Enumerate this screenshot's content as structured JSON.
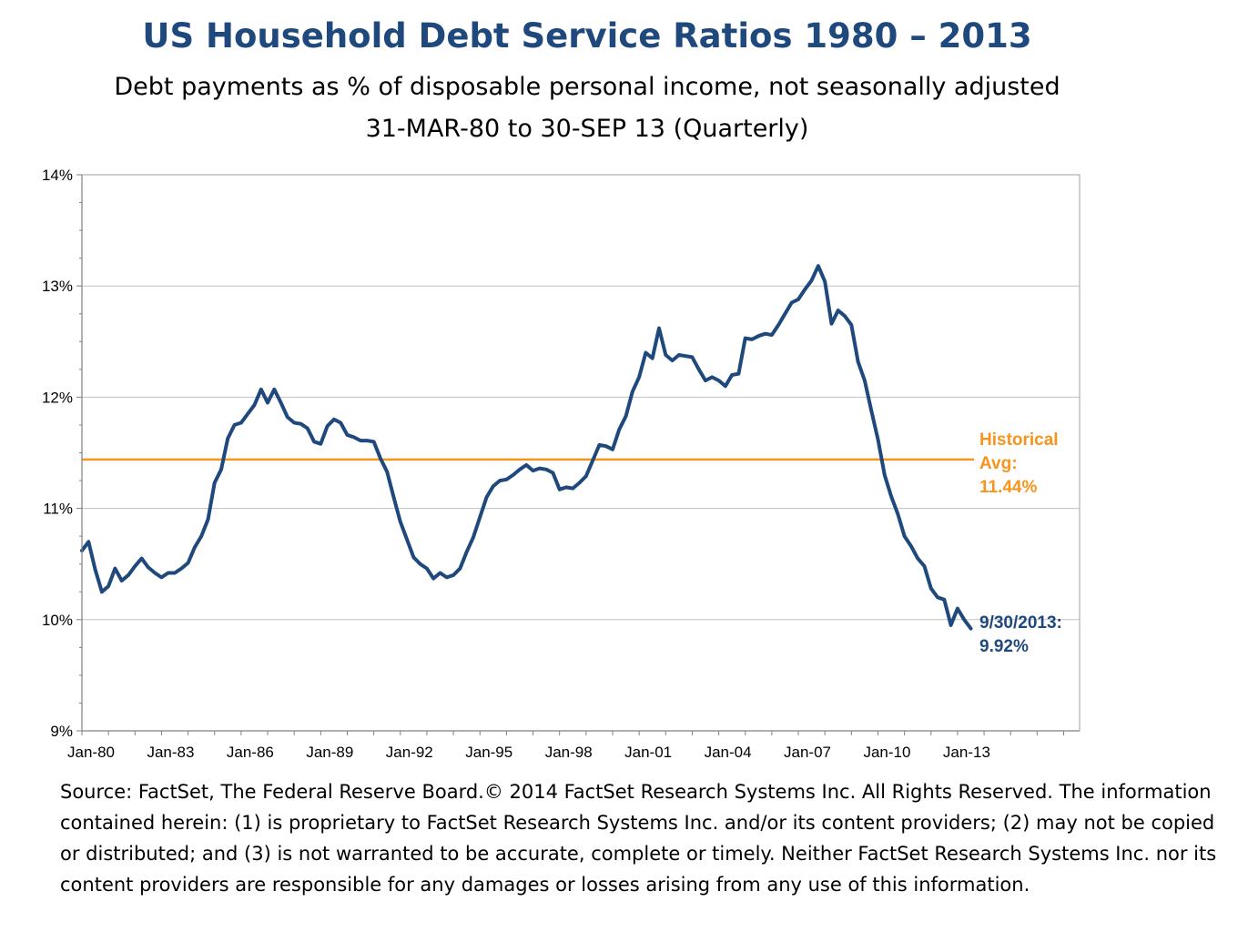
{
  "title": "US Household Debt Service Ratios 1980 – 2013",
  "subtitle1": "Debt payments as % of disposable personal income, not seasonally adjusted",
  "subtitle2": "31-MAR-80 to 30-SEP 13 (Quarterly)",
  "source": "Source: FactSet, The Federal Reserve Board.© 2014 FactSet Research Systems Inc. All Rights Reserved. The information contained herein: (1) is proprietary to FactSet Research Systems Inc. and/or its content providers; (2) may not be copied or distributed; and (3) is not warranted to be accurate, complete or timely. Neither FactSet Research Systems Inc. nor its content providers are responsible for any damages or losses arising from any use of this information.",
  "colors": {
    "title": "#1f497d",
    "series": "#1f497d",
    "average": "#f7941d",
    "grid": "#c0c0c0",
    "last_label": "#1f497d"
  },
  "chart_data": {
    "type": "line",
    "title": "US Household Debt Service Ratios 1980 – 2013",
    "xlabel": "",
    "ylabel": "",
    "ylim": [
      9,
      14
    ],
    "y_ticks": [
      9,
      10,
      11,
      12,
      13,
      14
    ],
    "y_tick_labels": [
      "9%",
      "10%",
      "11%",
      "12%",
      "13%",
      "14%"
    ],
    "x_tick_labels": [
      "Jan-80",
      "Jan-83",
      "Jan-86",
      "Jan-89",
      "Jan-92",
      "Jan-95",
      "Jan-98",
      "Jan-01",
      "Jan-04",
      "Jan-07",
      "Jan-10",
      "Jan-13"
    ],
    "grid": true,
    "start": "1980-03-31",
    "frequency": "quarterly",
    "series": [
      {
        "values": [
          10.62,
          10.7,
          10.45,
          10.25,
          10.3,
          10.46,
          10.35,
          10.4,
          10.48,
          10.55,
          10.47,
          10.42,
          10.38,
          10.42,
          10.42,
          10.46,
          10.51,
          10.65,
          10.75,
          10.9,
          11.23,
          11.35,
          11.63,
          11.75,
          11.77,
          11.85,
          11.93,
          12.07,
          11.95,
          12.07,
          11.95,
          11.82,
          11.77,
          11.76,
          11.72,
          11.6,
          11.58,
          11.74,
          11.8,
          11.77,
          11.66,
          11.64,
          11.61,
          11.61,
          11.6,
          11.45,
          11.33,
          11.1,
          10.88,
          10.72,
          10.56,
          10.5,
          10.46,
          10.37,
          10.42,
          10.38,
          10.4,
          10.46,
          10.61,
          10.74,
          10.92,
          11.1,
          11.2,
          11.25,
          11.26,
          11.3,
          11.35,
          11.39,
          11.34,
          11.36,
          11.35,
          11.32,
          11.17,
          11.19,
          11.18,
          11.23,
          11.29,
          11.43,
          11.57,
          11.56,
          11.53,
          11.71,
          11.83,
          12.05,
          12.18,
          12.4,
          12.35,
          12.62,
          12.38,
          12.33,
          12.38,
          12.37,
          12.36,
          12.25,
          12.15,
          12.18,
          12.15,
          12.1,
          12.2,
          12.21,
          12.53,
          12.52,
          12.55,
          12.57,
          12.56,
          12.65,
          12.75,
          12.85,
          12.88,
          12.97,
          13.05,
          13.18,
          13.04,
          12.66,
          12.78,
          12.73,
          12.65,
          12.32,
          12.15,
          11.88,
          11.62,
          11.3,
          11.11,
          10.95,
          10.75,
          10.66,
          10.55,
          10.48,
          10.28,
          10.2,
          10.18,
          9.95,
          10.1,
          10.0,
          9.92
        ]
      },
      {
        "name": "Historical Avg: 11.44%",
        "values": [
          11.44
        ]
      }
    ],
    "annotations": {
      "average_label": [
        "Historical",
        "Avg:",
        "11.44%"
      ],
      "last_value_label": [
        "9/30/2013:",
        "9.92%"
      ]
    }
  }
}
